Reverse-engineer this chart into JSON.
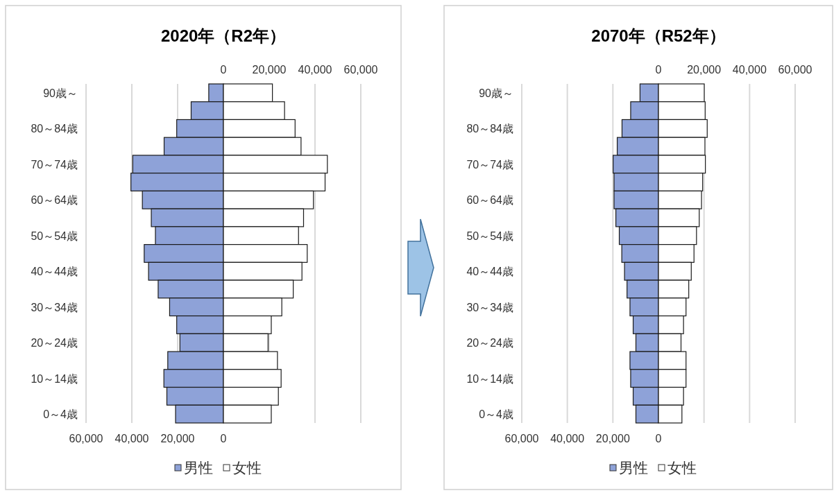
{
  "chart_data": [
    {
      "type": "bar",
      "orientation": "horizontal",
      "stacked": true,
      "title": "2020年（R2年）",
      "categories": [
        "90歳～",
        null,
        "80～84歳",
        null,
        "70～74歳",
        null,
        "60～64歳",
        null,
        "50～54歳",
        null,
        "40～44歳",
        null,
        "30～34歳",
        null,
        "20～24歳",
        null,
        "10～14歳",
        null,
        "0～4歳"
      ],
      "series": [
        {
          "name": "男性",
          "color": "#8ea2d8",
          "values": [
            -6400,
            -14100,
            -20400,
            -25900,
            -39600,
            -40400,
            -35400,
            -31500,
            -29700,
            -34600,
            -32700,
            -28500,
            -23500,
            -20400,
            -19000,
            -24300,
            -26000,
            -24700,
            -20900
          ]
        },
        {
          "name": "女性",
          "color": "#ffffff",
          "values": [
            21400,
            26700,
            31300,
            33900,
            45400,
            44400,
            39300,
            35000,
            32800,
            36600,
            34300,
            30500,
            25500,
            20900,
            19500,
            23600,
            25200,
            24000,
            20900
          ]
        }
      ],
      "xlim": [
        -60000,
        60000
      ],
      "xticks": [
        {
          "value": -60000,
          "label": "60,000"
        },
        {
          "value": -40000,
          "label": "40,000"
        },
        {
          "value": -20000,
          "label": "20,000"
        },
        0
      ],
      "x2lim": [
        -60000,
        60000
      ],
      "x2ticks": [
        0,
        {
          "value": 20000,
          "label": "20,000"
        },
        {
          "value": 40000,
          "label": "40,000"
        },
        {
          "value": 60000,
          "label": "60,000"
        }
      ],
      "grid": "x",
      "legend": "bottom"
    },
    {
      "type": "bar",
      "orientation": "horizontal",
      "stacked": true,
      "title": "2070年（R52年）",
      "categories": [
        "90歳～",
        null,
        "80～84歳",
        null,
        "70～74歳",
        null,
        "60～64歳",
        null,
        "50～54歳",
        null,
        "40～44歳",
        null,
        "30～34歳",
        null,
        "20～24歳",
        null,
        "10～14歳",
        null,
        "0～4歳"
      ],
      "series": [
        {
          "name": "男性",
          "color": "#8ea2d8",
          "values": [
            -8100,
            -12200,
            -16000,
            -18100,
            -19900,
            -19500,
            -19500,
            -18700,
            -17200,
            -16100,
            -14900,
            -13800,
            -12500,
            -11100,
            -9900,
            -12500,
            -12200,
            -11100,
            -9900
          ]
        },
        {
          "name": "女性",
          "color": "#ffffff",
          "values": [
            20100,
            20500,
            21400,
            20400,
            20600,
            19400,
            18900,
            17900,
            16700,
            15600,
            14400,
            13300,
            12100,
            11000,
            9900,
            12100,
            12100,
            11000,
            10300
          ]
        }
      ],
      "xlim": [
        -60000,
        60000
      ],
      "xticks": [
        {
          "value": -60000,
          "label": "60,000"
        },
        {
          "value": -40000,
          "label": "40,000"
        },
        {
          "value": -20000,
          "label": "20,000"
        },
        0
      ],
      "x2lim": [
        -60000,
        60000
      ],
      "x2ticks": [
        0,
        {
          "value": 20000,
          "label": "20,000"
        },
        {
          "value": 40000,
          "label": "40,000"
        },
        {
          "value": 60000,
          "label": "60,000"
        }
      ],
      "grid": "x",
      "legend": "bottom"
    }
  ]
}
